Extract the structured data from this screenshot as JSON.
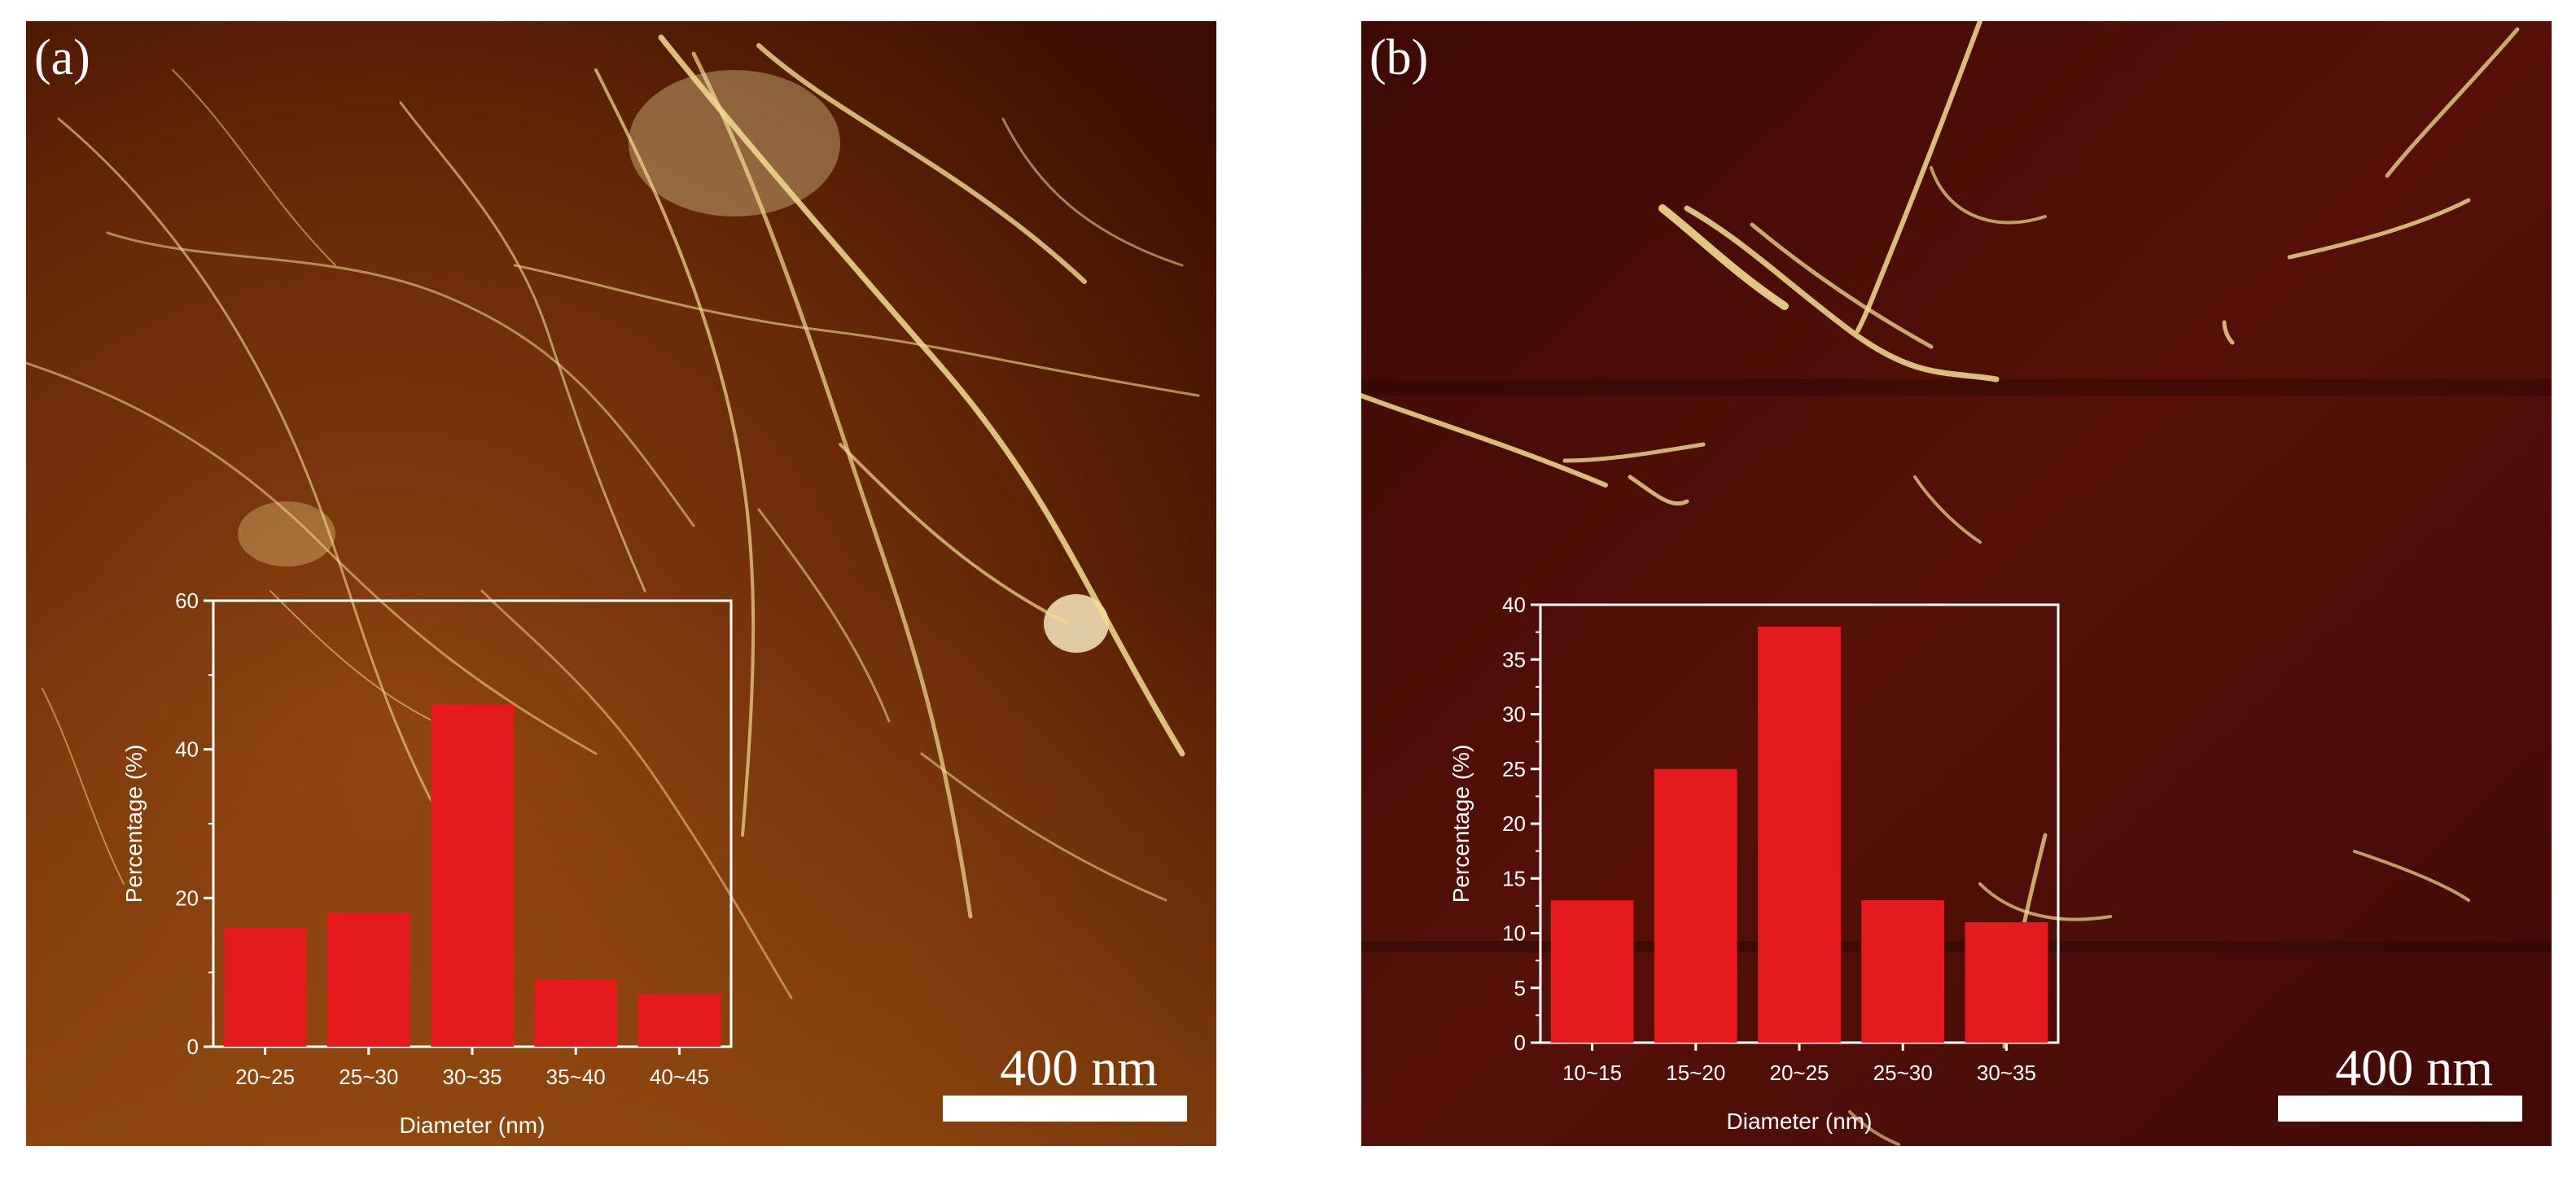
{
  "colors": {
    "bar": "#e41a1c",
    "frame": "#ffffff",
    "bg_a_dark": "#3b0c02",
    "bg_a_light": "#a65a14",
    "bg_b": "#4a0b05",
    "fiber": "#f3dc90"
  },
  "panels": [
    {
      "label": "(a)",
      "scalebar_label": "400 nm"
    },
    {
      "label": "(b)",
      "scalebar_label": "400 nm"
    }
  ],
  "chart_data": [
    {
      "type": "bar",
      "panel": "(a)",
      "categories": [
        "20~25",
        "25~30",
        "30~35",
        "35~40",
        "40~45"
      ],
      "values": [
        16,
        18,
        46,
        9,
        7
      ],
      "xlabel": "Diameter (nm)",
      "ylabel": "Percentage (%)",
      "ylim": [
        0,
        60
      ],
      "yticks": [
        0,
        20,
        40,
        60
      ],
      "grid": false,
      "legend": "none"
    },
    {
      "type": "bar",
      "panel": "(b)",
      "categories": [
        "10~15",
        "15~20",
        "20~25",
        "25~30",
        "30~35"
      ],
      "values": [
        13,
        25,
        38,
        13,
        11
      ],
      "xlabel": "Diameter (nm)",
      "ylabel": "Percentage (%)",
      "ylim": [
        0,
        40
      ],
      "yticks": [
        0,
        5,
        10,
        15,
        20,
        25,
        30,
        35,
        40
      ],
      "grid": false,
      "legend": "none"
    }
  ]
}
